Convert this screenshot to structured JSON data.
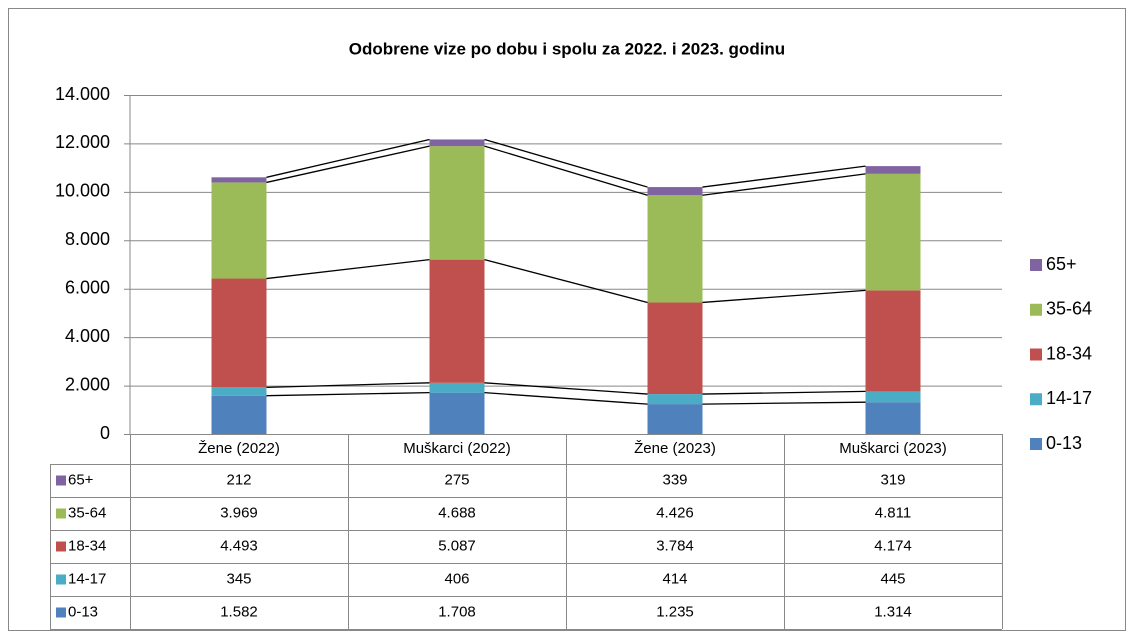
{
  "chart_data": {
    "type": "bar",
    "stacked": true,
    "title": "Odobrene vize po dobu i spolu za 2022. i 2023. godinu",
    "categories": [
      "Žene (2022)",
      "Muškarci (2022)",
      "Žene (2023)",
      "Muškarci (2023)"
    ],
    "series": [
      {
        "name": "0-13",
        "color": "#4f81bd",
        "values": [
          1582,
          1708,
          1235,
          1314
        ],
        "value_labels": [
          "1.582",
          "1.708",
          "1.235",
          "1.314"
        ]
      },
      {
        "name": "14-17",
        "color": "#4bacc6",
        "values": [
          345,
          406,
          414,
          445
        ],
        "value_labels": [
          "345",
          "406",
          "414",
          "445"
        ]
      },
      {
        "name": "18-34",
        "color": "#c0504d",
        "values": [
          4493,
          5087,
          3784,
          4174
        ],
        "value_labels": [
          "4.493",
          "5.087",
          "3.784",
          "4.174"
        ]
      },
      {
        "name": "35-64",
        "color": "#9bbb59",
        "values": [
          3969,
          4688,
          4426,
          4811
        ],
        "value_labels": [
          "3.969",
          "4.688",
          "4.426",
          "4.811"
        ]
      },
      {
        "name": "65+",
        "color": "#8064a2",
        "values": [
          212,
          275,
          339,
          319
        ],
        "value_labels": [
          "212",
          "275",
          "339",
          "319"
        ]
      }
    ],
    "ylim": [
      0,
      14000
    ],
    "yticks": [
      0,
      {
        "value": 2000,
        "label": "2.000"
      },
      {
        "value": 4000,
        "label": "4.000"
      },
      {
        "value": 6000,
        "label": "6.000"
      },
      {
        "value": 8000,
        "label": "8.000"
      },
      {
        "value": 10000,
        "label": "10.000"
      },
      {
        "value": 12000,
        "label": "12.000"
      },
      {
        "value": 14000,
        "label": "14.000"
      }
    ],
    "grid": true,
    "legend": "right",
    "series_lines": true,
    "data_table": true
  }
}
